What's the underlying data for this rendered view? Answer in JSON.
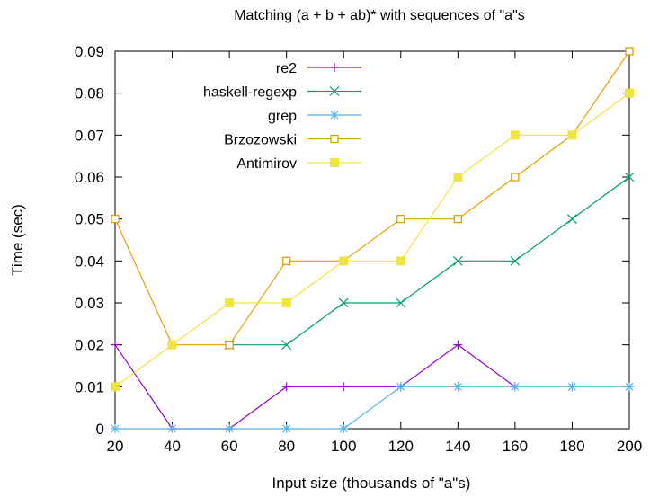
{
  "chart_data": {
    "type": "line",
    "title": "Matching (a + b + ab)* with sequences of \"a\"s",
    "xlabel": "Input size (thousands of \"a\"s)",
    "ylabel": "Time (sec)",
    "x": [
      20,
      40,
      60,
      80,
      100,
      120,
      140,
      160,
      180,
      200
    ],
    "xlim": [
      20,
      200
    ],
    "ylim": [
      0,
      0.09
    ],
    "x_ticks": [
      "20",
      "40",
      "60",
      "80",
      "100",
      "120",
      "140",
      "160",
      "180",
      "200"
    ],
    "y_ticks": [
      "0",
      "0.01",
      "0.02",
      "0.03",
      "0.04",
      "0.05",
      "0.06",
      "0.07",
      "0.08",
      "0.09"
    ],
    "grid": false,
    "legend_position": "top-left",
    "series": [
      {
        "name": "re2",
        "color": "#9400d3",
        "marker": "plus",
        "values": [
          0.02,
          0,
          0,
          0.01,
          0.01,
          0.01,
          0.02,
          0.01,
          null,
          null
        ]
      },
      {
        "name": "haskell-regexp",
        "color": "#009e73",
        "marker": "cross",
        "values": [
          null,
          null,
          0.02,
          0.02,
          0.03,
          0.03,
          0.04,
          0.04,
          0.05,
          0.06
        ]
      },
      {
        "name": "grep",
        "color": "#56b4e9",
        "marker": "star",
        "values": [
          0,
          0,
          0,
          0,
          0,
          0.01,
          0.01,
          0.01,
          0.01,
          0.01
        ]
      },
      {
        "name": "Brzozowski",
        "color": "#e69f00",
        "marker": "open-square",
        "values": [
          0.05,
          0.02,
          0.02,
          0.04,
          0.04,
          0.05,
          0.05,
          0.06,
          0.07,
          0.09
        ]
      },
      {
        "name": "Antimirov",
        "color": "#f0e442",
        "marker": "filled-square",
        "values": [
          0.01,
          0.02,
          0.03,
          0.03,
          0.04,
          0.04,
          0.06,
          0.07,
          0.07,
          0.08
        ]
      }
    ]
  }
}
